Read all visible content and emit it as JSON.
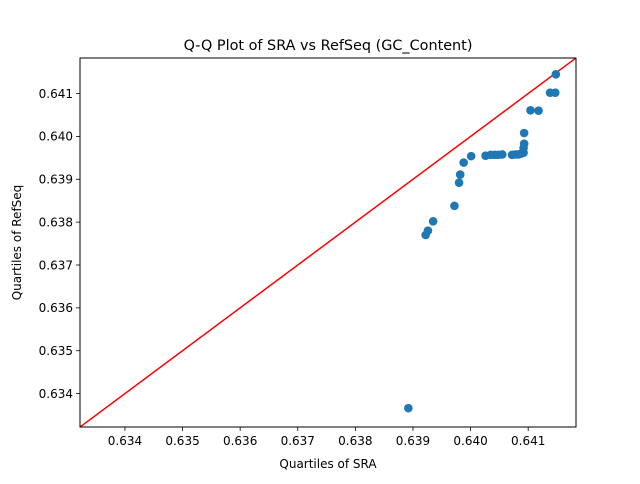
{
  "chart_data": {
    "type": "scatter",
    "title": "Q-Q Plot of SRA vs RefSeq (GC_Content)",
    "xlabel": "Quartiles of SRA",
    "ylabel": "Quartiles of RefSeq",
    "xlim": [
      0.63322,
      0.64183
    ],
    "ylim": [
      0.63322,
      0.64183
    ],
    "xticks": [
      "0.634",
      "0.635",
      "0.636",
      "0.637",
      "0.638",
      "0.639",
      "0.640",
      "0.641"
    ],
    "yticks": [
      "0.634",
      "0.635",
      "0.636",
      "0.637",
      "0.638",
      "0.639",
      "0.640",
      "0.641"
    ],
    "grid": false,
    "legend": "none",
    "reference_line": {
      "label": "",
      "color": "#ff0000",
      "slope": 1,
      "intercept": 0
    },
    "series": [
      {
        "color": "#1f77b4",
        "points": [
          {
            "x": 0.63892,
            "y": 0.63366
          },
          {
            "x": 0.63922,
            "y": 0.6377
          },
          {
            "x": 0.63926,
            "y": 0.6378
          },
          {
            "x": 0.63935,
            "y": 0.63802
          },
          {
            "x": 0.63972,
            "y": 0.63838
          },
          {
            "x": 0.6398,
            "y": 0.63892
          },
          {
            "x": 0.63982,
            "y": 0.63911
          },
          {
            "x": 0.63988,
            "y": 0.63939
          },
          {
            "x": 0.64001,
            "y": 0.63954
          },
          {
            "x": 0.64026,
            "y": 0.63955
          },
          {
            "x": 0.64035,
            "y": 0.63957
          },
          {
            "x": 0.64042,
            "y": 0.63957
          },
          {
            "x": 0.64048,
            "y": 0.63957
          },
          {
            "x": 0.64055,
            "y": 0.63958
          },
          {
            "x": 0.64072,
            "y": 0.63957
          },
          {
            "x": 0.64078,
            "y": 0.63958
          },
          {
            "x": 0.64083,
            "y": 0.63958
          },
          {
            "x": 0.64088,
            "y": 0.6396
          },
          {
            "x": 0.64092,
            "y": 0.63962
          },
          {
            "x": 0.64092,
            "y": 0.63973
          },
          {
            "x": 0.64093,
            "y": 0.63983
          },
          {
            "x": 0.64093,
            "y": 0.64008
          },
          {
            "x": 0.64104,
            "y": 0.64061
          },
          {
            "x": 0.64118,
            "y": 0.6406
          },
          {
            "x": 0.64138,
            "y": 0.64102
          },
          {
            "x": 0.64147,
            "y": 0.64102
          },
          {
            "x": 0.64148,
            "y": 0.64145
          }
        ]
      }
    ]
  }
}
